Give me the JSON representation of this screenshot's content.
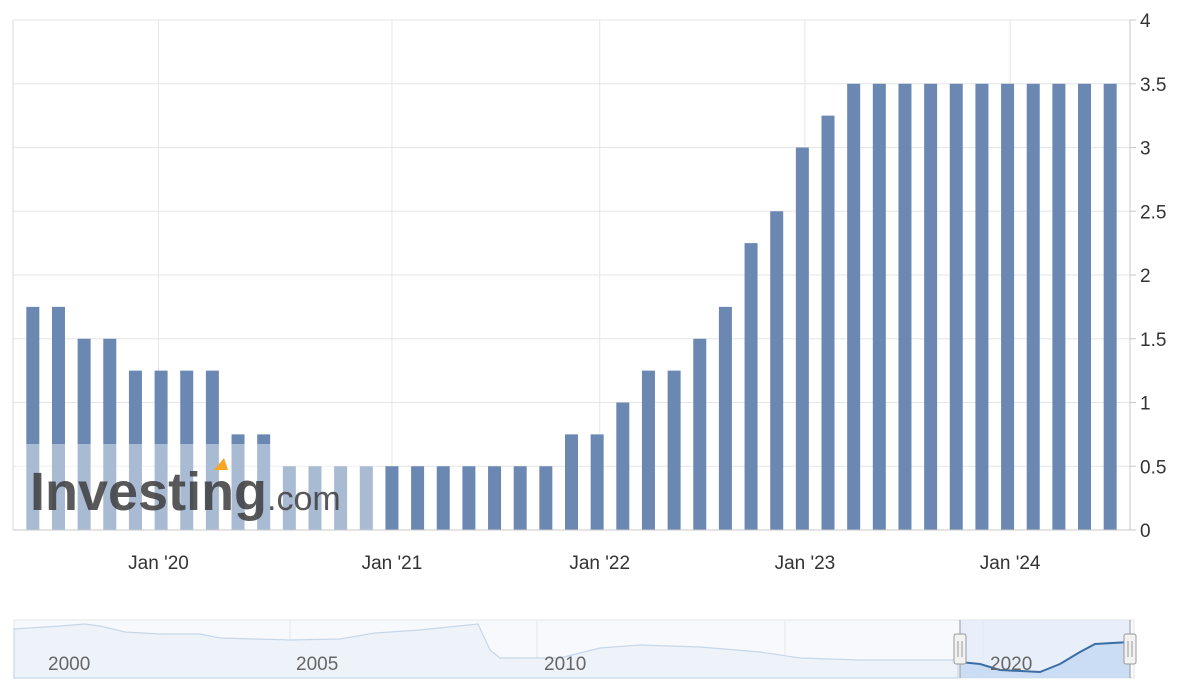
{
  "chart_data": {
    "type": "bar",
    "series_color": "#6b88b3",
    "y_axis": {
      "position": "right",
      "ylim": [
        0,
        4
      ],
      "ticks": [
        "0",
        "0.5",
        "1",
        "1.5",
        "2",
        "2.5",
        "3",
        "3.5",
        "4"
      ]
    },
    "x_axis": {
      "tick_labels": [
        "Jan '20",
        "Jan '21",
        "Jan '22",
        "Jan '23",
        "Jan '24"
      ]
    },
    "grid": true,
    "values": [
      1.75,
      1.75,
      1.5,
      1.5,
      1.25,
      1.25,
      1.25,
      1.25,
      0.75,
      0.75,
      0.5,
      0.5,
      0.5,
      0.5,
      0.5,
      0.5,
      0.5,
      0.5,
      0.5,
      0.5,
      0.5,
      0.75,
      0.75,
      1.0,
      1.25,
      1.25,
      1.5,
      1.75,
      2.25,
      2.5,
      3.0,
      3.25,
      3.5,
      3.5,
      3.5,
      3.5,
      3.5,
      3.5,
      3.5,
      3.5,
      3.5,
      3.5,
      3.5
    ]
  },
  "watermark": {
    "logo_text": "Investing",
    "logo_suffix": ".com"
  },
  "navigator": {
    "year_labels": [
      "2000",
      "2005",
      "2010",
      "2020"
    ],
    "fill_color": "#dce8f7",
    "line_color": "#3a6ea5"
  }
}
